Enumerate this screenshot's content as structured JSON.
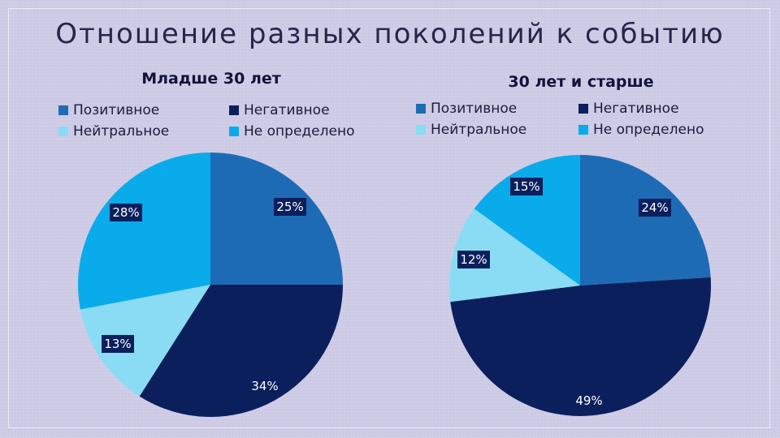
{
  "title": "Отношение разных поколений к событию",
  "colors": {
    "positive": "#1e6bb5",
    "negative": "#0b1f5c",
    "neutral": "#89dcf3",
    "undefined": "#0aabea",
    "label_bg": "#0b1f5c"
  },
  "chart_data": [
    {
      "type": "pie",
      "title": "Младше 30 лет",
      "legend": [
        "Позитивное",
        "Негативное",
        "Нейтральное",
        "Не определено"
      ],
      "legend_placement": "top",
      "categories": [
        "Позитивное",
        "Негативное",
        "Нейтральное",
        "Не определено"
      ],
      "values": [
        25,
        34,
        13,
        28
      ],
      "labels": [
        "25%",
        "34%",
        "13%",
        "28%"
      ]
    },
    {
      "type": "pie",
      "title": "30 лет и старше",
      "legend": [
        "Позитивное",
        "Негативное",
        "Нейтральное",
        "Не определено"
      ],
      "legend_placement": "top",
      "categories": [
        "Позитивное",
        "Негативное",
        "Нейтральное",
        "Не определено"
      ],
      "values": [
        24,
        49,
        12,
        15
      ],
      "labels": [
        "24%",
        "49%",
        "12%",
        "15%"
      ]
    }
  ]
}
